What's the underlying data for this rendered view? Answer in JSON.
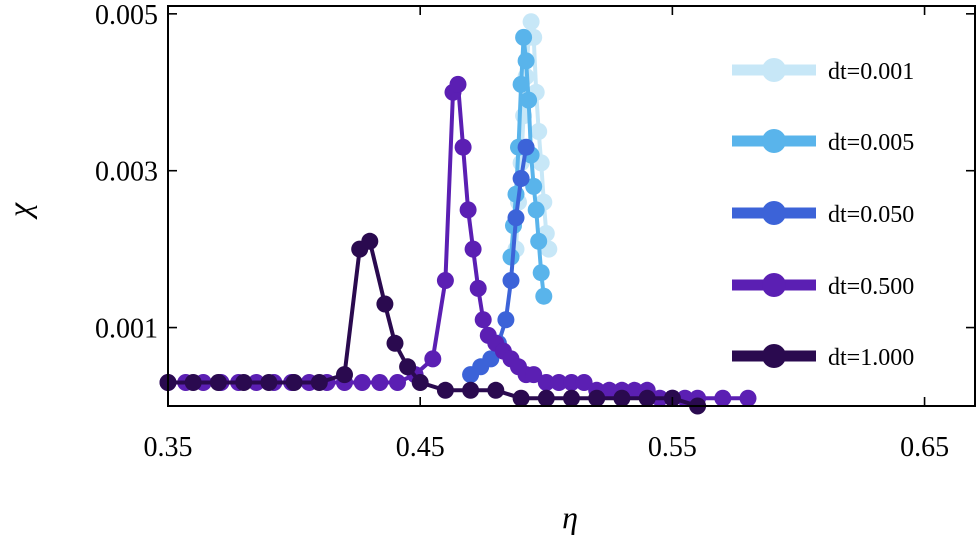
{
  "chart_data": {
    "type": "line",
    "title": "",
    "xlabel": "η",
    "ylabel": "χ",
    "xlim": [
      0.35,
      0.67
    ],
    "ylim": [
      0,
      0.0051
    ],
    "xticks": [
      0.35,
      0.45,
      0.55,
      0.65
    ],
    "xtick_labels": [
      "0.35",
      "0.45",
      "0.55",
      "0.65"
    ],
    "yticks": [
      0.001,
      0.003,
      0.005
    ],
    "ytick_labels": [
      "0.001",
      "0.003",
      "0.005"
    ],
    "grid": false,
    "legend_position": "right",
    "series": [
      {
        "name": "dt=0.001",
        "color": "#c7e7f7",
        "x": [
          0.488,
          0.489,
          0.49,
          0.491,
          0.492,
          0.493,
          0.494,
          0.495,
          0.496,
          0.497,
          0.498,
          0.499,
          0.5,
          0.501
        ],
        "y": [
          0.002,
          0.0026,
          0.0031,
          0.0037,
          0.0042,
          0.0047,
          0.0049,
          0.0047,
          0.004,
          0.0035,
          0.0031,
          0.0026,
          0.0022,
          0.002
        ]
      },
      {
        "name": "dt=0.005",
        "color": "#59b4eb",
        "x": [
          0.486,
          0.487,
          0.488,
          0.489,
          0.49,
          0.491,
          0.492,
          0.493,
          0.494,
          0.495,
          0.496,
          0.497,
          0.498,
          0.499
        ],
        "y": [
          0.0019,
          0.0023,
          0.0027,
          0.0033,
          0.0041,
          0.0047,
          0.0044,
          0.0039,
          0.0032,
          0.0028,
          0.0025,
          0.0021,
          0.0017,
          0.0014
        ]
      },
      {
        "name": "dt=0.050",
        "color": "#3c63d8",
        "x": [
          0.47,
          0.474,
          0.478,
          0.481,
          0.484,
          0.486,
          0.488,
          0.49,
          0.492
        ],
        "y": [
          0.0004,
          0.0005,
          0.0006,
          0.0008,
          0.0011,
          0.0016,
          0.0024,
          0.0029,
          0.0033
        ]
      },
      {
        "name": "dt=0.500",
        "color": "#5b1fb3",
        "x": [
          0.35,
          0.357,
          0.364,
          0.371,
          0.378,
          0.385,
          0.392,
          0.399,
          0.406,
          0.413,
          0.42,
          0.427,
          0.434,
          0.441,
          0.448,
          0.455,
          0.46,
          0.463,
          0.465,
          0.467,
          0.469,
          0.471,
          0.473,
          0.475,
          0.477,
          0.48,
          0.483,
          0.486,
          0.489,
          0.492,
          0.495,
          0.5,
          0.505,
          0.51,
          0.515,
          0.52,
          0.525,
          0.53,
          0.535,
          0.54,
          0.545,
          0.55,
          0.555,
          0.56,
          0.57,
          0.58
        ],
        "y": [
          0.0003,
          0.0003,
          0.0003,
          0.0003,
          0.0003,
          0.0003,
          0.0003,
          0.0003,
          0.0003,
          0.0003,
          0.0003,
          0.0003,
          0.0003,
          0.0003,
          0.0004,
          0.0006,
          0.0016,
          0.004,
          0.0041,
          0.0033,
          0.0025,
          0.002,
          0.0015,
          0.0011,
          0.0009,
          0.0008,
          0.0007,
          0.0006,
          0.0005,
          0.0004,
          0.0004,
          0.0003,
          0.0003,
          0.0003,
          0.0003,
          0.0002,
          0.0002,
          0.0002,
          0.0002,
          0.0002,
          0.0001,
          0.0001,
          0.0001,
          0.0001,
          0.0001,
          0.0001
        ]
      },
      {
        "name": "dt=1.000",
        "color": "#2a0a4f",
        "x": [
          0.35,
          0.36,
          0.37,
          0.38,
          0.39,
          0.4,
          0.41,
          0.42,
          0.426,
          0.43,
          0.436,
          0.44,
          0.445,
          0.45,
          0.46,
          0.47,
          0.48,
          0.49,
          0.5,
          0.51,
          0.52,
          0.53,
          0.54,
          0.55,
          0.56
        ],
        "y": [
          0.0003,
          0.0003,
          0.0003,
          0.0003,
          0.0003,
          0.0003,
          0.0003,
          0.0004,
          0.002,
          0.0021,
          0.0013,
          0.0008,
          0.0005,
          0.0003,
          0.0002,
          0.0002,
          0.0002,
          0.0001,
          0.0001,
          0.0001,
          0.0001,
          0.0001,
          0.0001,
          0.0001,
          0.0
        ]
      }
    ]
  }
}
